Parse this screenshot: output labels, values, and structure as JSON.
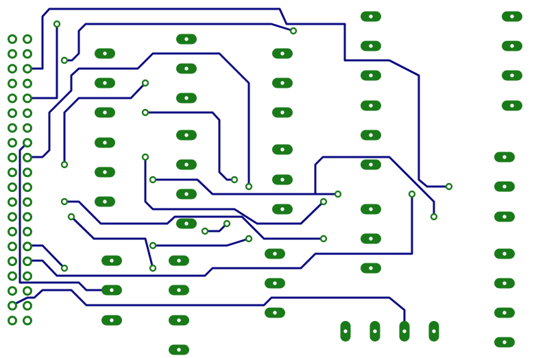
{
  "board": {
    "background": "#ffffff",
    "trace_color": "#0b0b82",
    "pad_color": "#1a7a1a",
    "pad_hole_color": "#ffffff"
  }
}
